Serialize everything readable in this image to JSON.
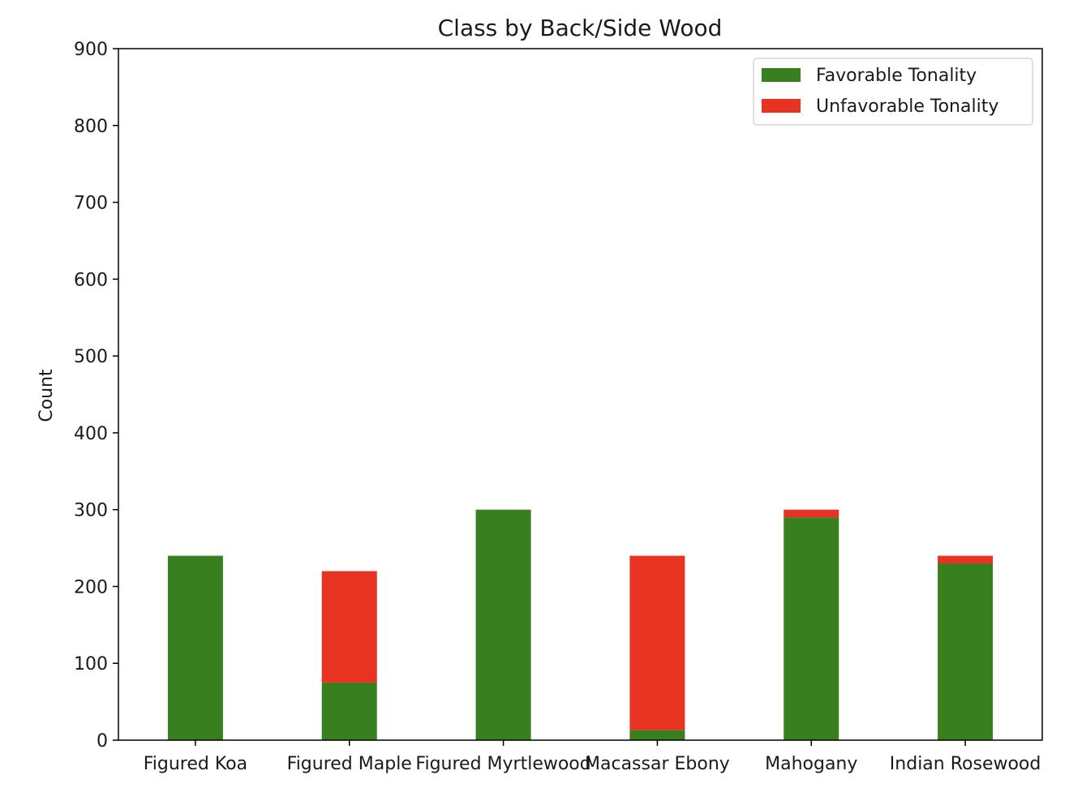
{
  "chart_data": {
    "type": "bar",
    "stacked": true,
    "title": "Class by Back/Side Wood",
    "xlabel": "",
    "ylabel": "Count",
    "ylim": [
      0,
      900
    ],
    "yticks": [
      0,
      100,
      200,
      300,
      400,
      500,
      600,
      700,
      800,
      900
    ],
    "categories": [
      "Figured Koa",
      "Figured Maple",
      "Figured Myrtlewood",
      "Macassar Ebony",
      "Mahogany",
      "Indian Rosewood"
    ],
    "series": [
      {
        "name": "Favorable Tonality",
        "color": "#38801f",
        "values": [
          240,
          75,
          300,
          13,
          290,
          230
        ]
      },
      {
        "name": "Unfavorable Tonality",
        "color": "#e83323",
        "values": [
          0,
          145,
          0,
          227,
          10,
          10
        ]
      }
    ],
    "legend": {
      "position": "top-right"
    },
    "grid": false
  }
}
